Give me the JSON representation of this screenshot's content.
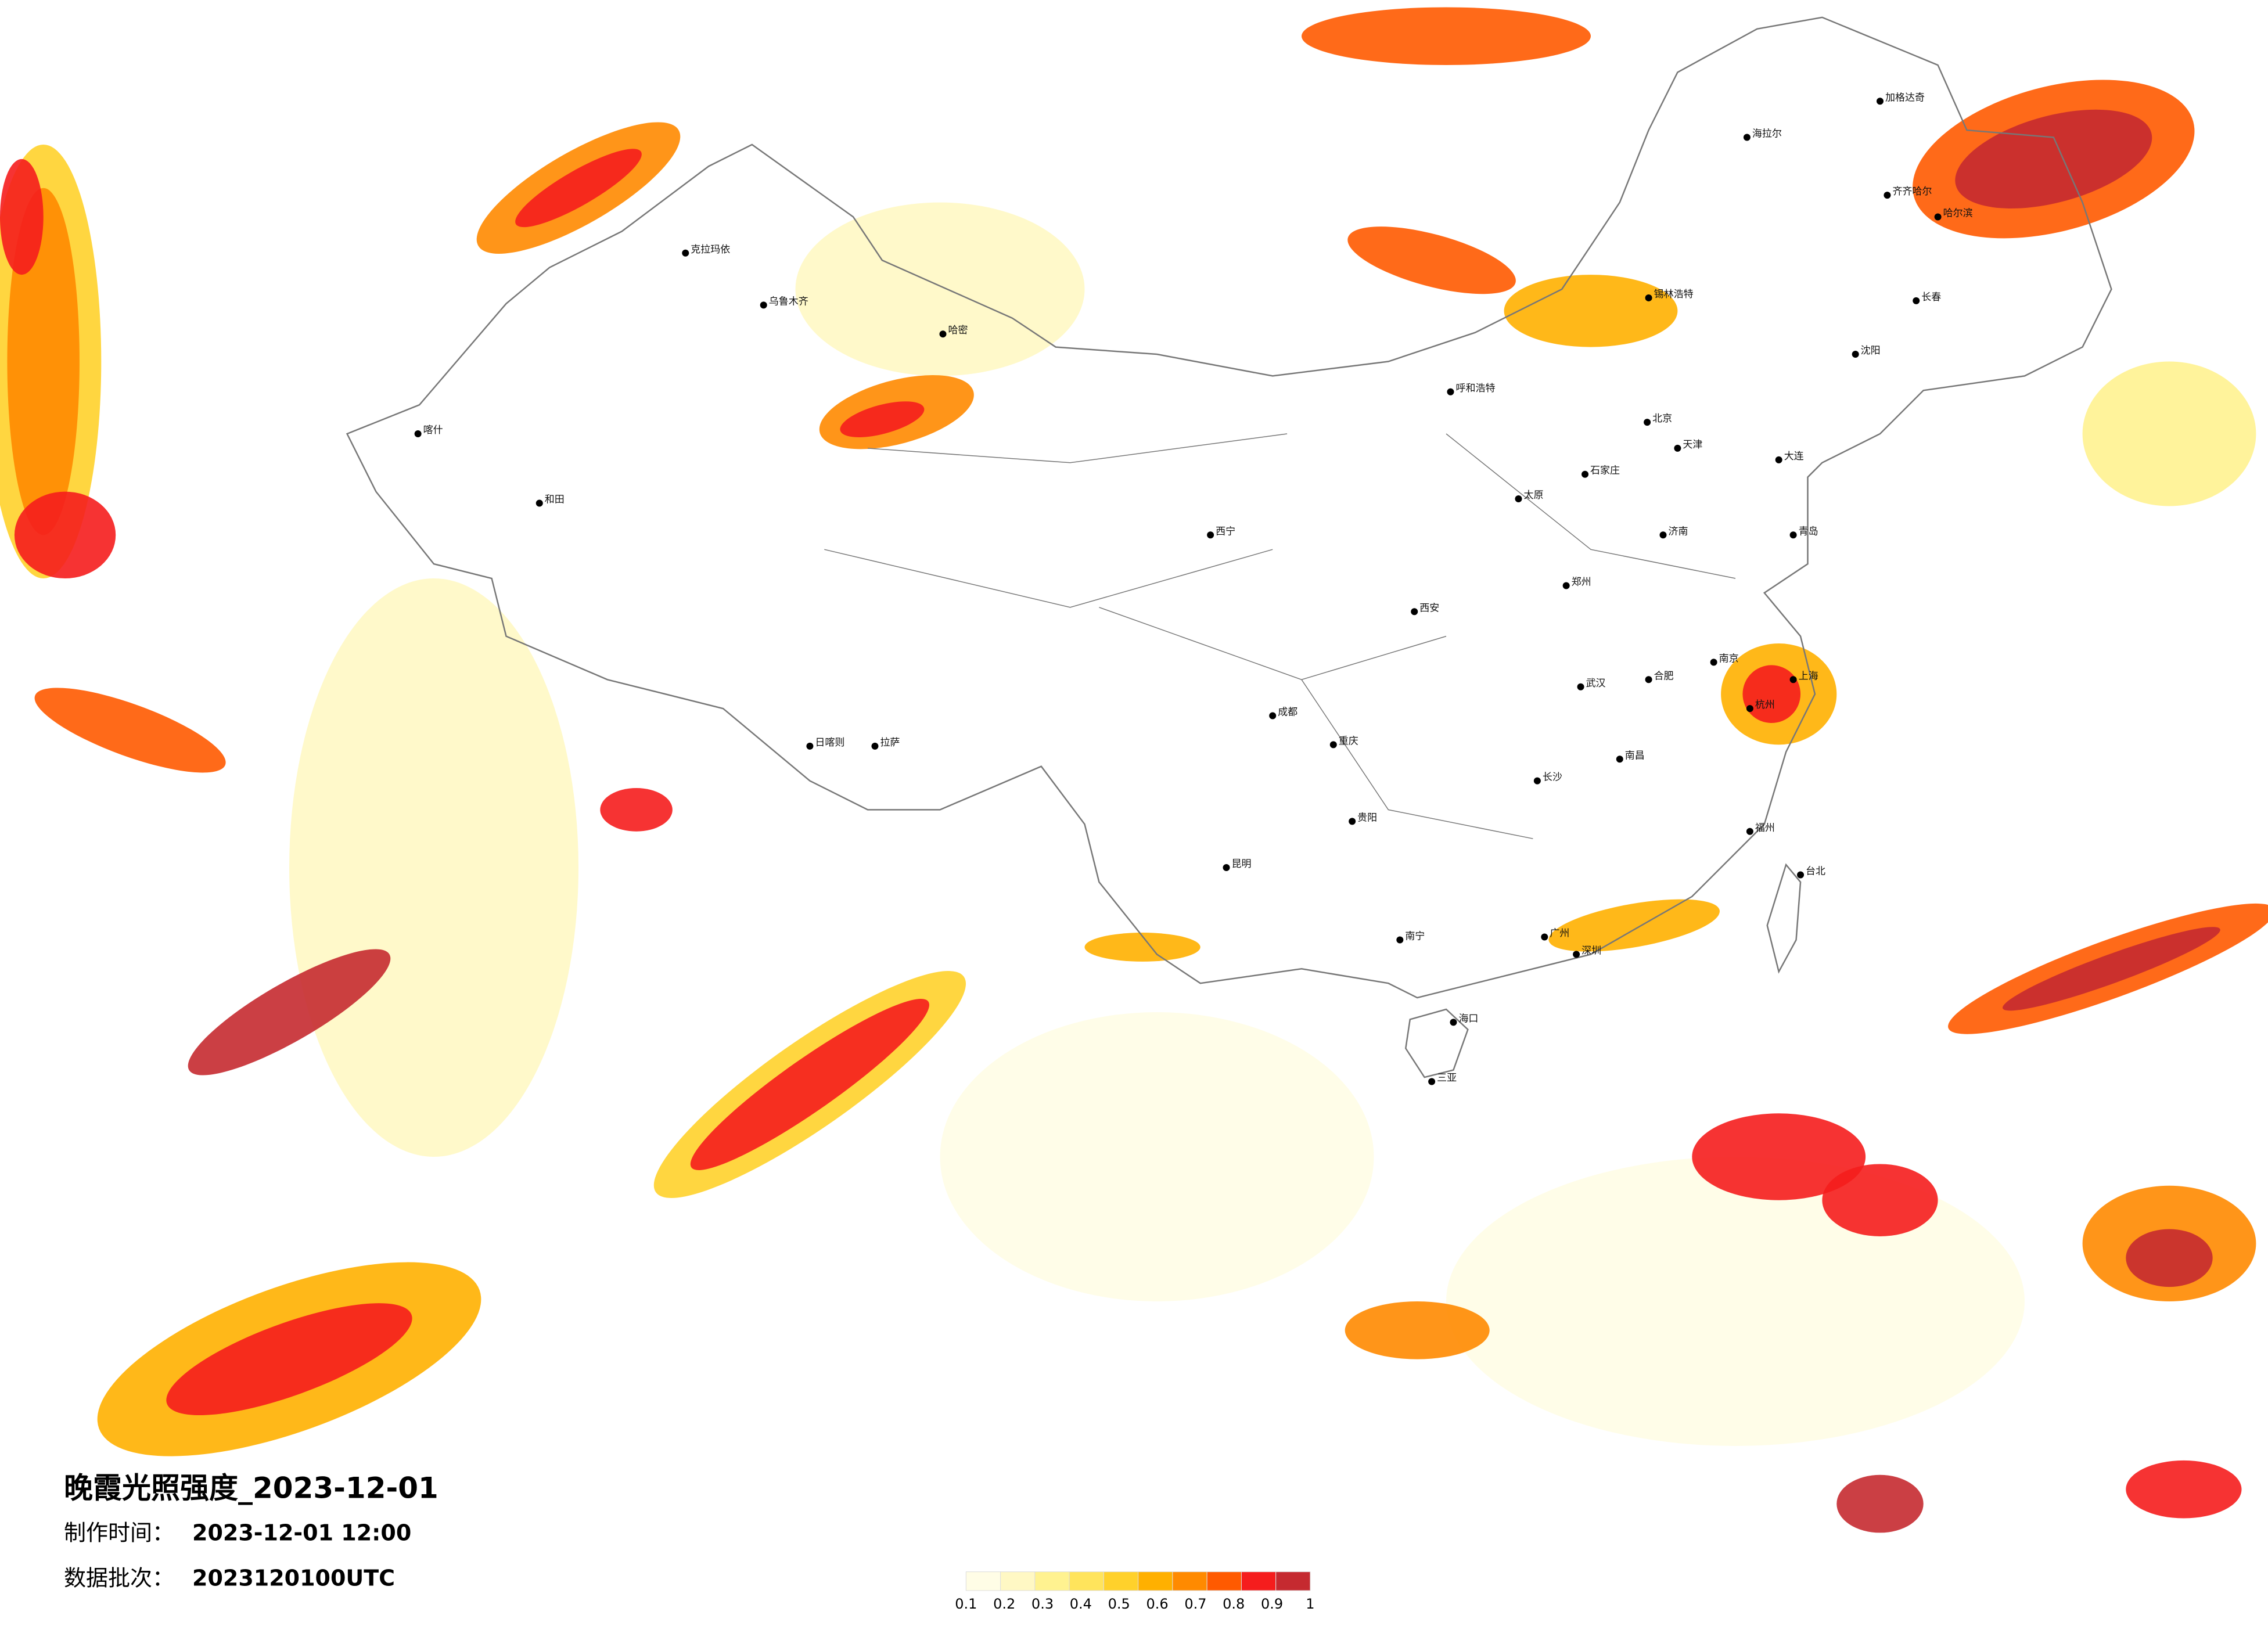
{
  "title": "晚霞光照强度_2023-12-01",
  "info": {
    "made_label": "制作时间：",
    "made_value": "2023-12-01 12:00",
    "batch_label": "数据批次：",
    "batch_value": "2023120100UTC"
  },
  "legend": {
    "colors": [
      "#fffde6",
      "#fff8c4",
      "#fff290",
      "#ffe45c",
      "#ffd12b",
      "#ffb000",
      "#ff8a00",
      "#ff5a00",
      "#f51d1d",
      "#c52a30"
    ],
    "ticks": [
      0.1,
      0.2,
      0.3,
      0.4,
      0.5,
      0.6,
      0.7,
      0.8,
      0.9,
      1
    ]
  },
  "cities": [
    "乌鲁木齐",
    "克拉玛依",
    "喀什",
    "和田",
    "哈密",
    "拉萨",
    "日喀则",
    "西宁",
    "呼和浩特",
    "北京",
    "天津",
    "石家庄",
    "济南",
    "太原",
    "西安",
    "郑州",
    "武汉",
    "南京",
    "上海",
    "杭州",
    "合肥",
    "南昌",
    "长沙",
    "福州",
    "广州",
    "深圳",
    "南宁",
    "海口",
    "三亚",
    "昆明",
    "贵阳",
    "成都",
    "重庆",
    "哈尔滨",
    "长春",
    "沈阳",
    "大连",
    "台北",
    "齐齐哈尔",
    "锡林浩特",
    "青岛",
    "海拉尔",
    "加格达奇"
  ]
}
